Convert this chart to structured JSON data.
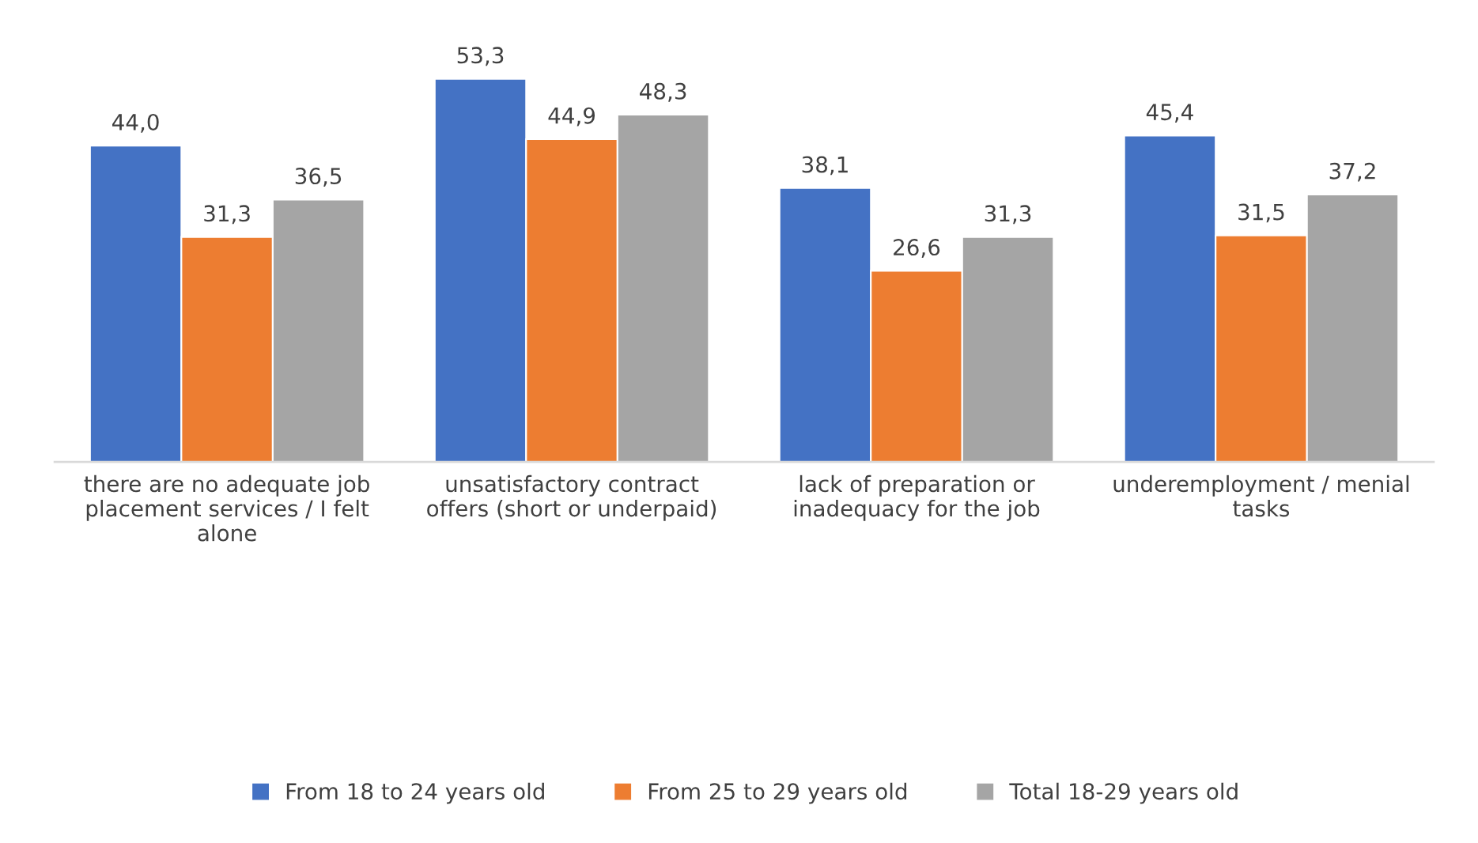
{
  "chart_data": {
    "type": "bar",
    "categories": [
      "there are no adequate job\nplacement services / I felt\nalone",
      "unsatisfactory contract\noffers (short or underpaid)",
      "lack of preparation or\ninadequacy for the job",
      "underemployment / menial\ntasks"
    ],
    "series": [
      {
        "name": "From 18 to 24 years old",
        "color": "#4472c4",
        "values": [
          44.0,
          53.3,
          38.1,
          45.4
        ],
        "value_labels": [
          "44,0",
          "53,3",
          "38,1",
          "45,4"
        ]
      },
      {
        "name": "From 25 to 29 years old",
        "color": "#ed7d31",
        "values": [
          31.3,
          44.9,
          26.6,
          31.5
        ],
        "value_labels": [
          "31,3",
          "44,9",
          "26,6",
          "31,5"
        ]
      },
      {
        "name": "Total 18-29 years old",
        "color": "#a5a5a5",
        "values": [
          36.5,
          48.3,
          31.3,
          37.2
        ],
        "value_labels": [
          "36,5",
          "48,3",
          "31,3",
          "37,2"
        ]
      }
    ],
    "legend": "bottom",
    "grid": false
  }
}
